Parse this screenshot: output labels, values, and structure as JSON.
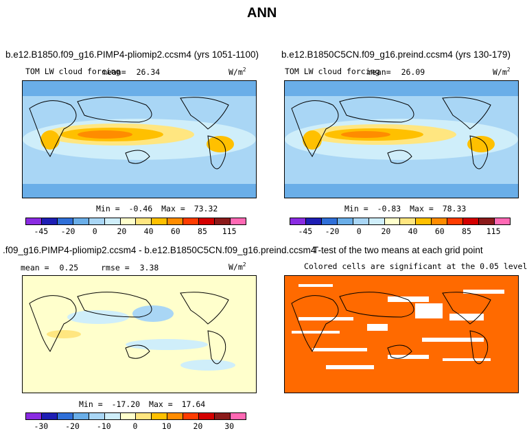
{
  "page_title": "ANN",
  "chart_data": [
    {
      "type": "heatmap",
      "title": "b.e12.B1850.f09_g16.PIMP4-pliomip2.ccsm4 (yrs 1051-1100)",
      "variable": "TOM LW cloud forcing",
      "mean_label": "mean=",
      "mean": "26.34",
      "units": "W/m",
      "units_exp": "2",
      "min_label": "Min =",
      "min": "-0.46",
      "max_label": "Max =",
      "max": "73.32",
      "colorbar_ticks": [
        "-45",
        "-20",
        "0",
        "20",
        "40",
        "60",
        "85",
        "115"
      ],
      "colorbar_colors": [
        "#8a2be2",
        "#1e1eb4",
        "#2f6fd8",
        "#6aaee8",
        "#a9d6f5",
        "#cfeefa",
        "#ffffcc",
        "#ffe680",
        "#ffc000",
        "#ff8c00",
        "#ff3c00",
        "#d40000",
        "#8b1a1a",
        "#ff69b4"
      ]
    },
    {
      "type": "heatmap",
      "title": "b.e12.B1850C5CN.f09_g16.preind.ccsm4 (yrs 130-179)",
      "variable": "TOM LW cloud forcing",
      "mean_label": "mean=",
      "mean": "26.09",
      "units": "W/m",
      "units_exp": "2",
      "min_label": "Min =",
      "min": "-0.83",
      "max_label": "Max =",
      "max": "78.33",
      "colorbar_ticks": [
        "-45",
        "-20",
        "0",
        "20",
        "40",
        "60",
        "85",
        "115"
      ],
      "colorbar_colors": [
        "#8a2be2",
        "#1e1eb4",
        "#2f6fd8",
        "#6aaee8",
        "#a9d6f5",
        "#cfeefa",
        "#ffffcc",
        "#ffe680",
        "#ffc000",
        "#ff8c00",
        "#ff3c00",
        "#d40000",
        "#8b1a1a",
        "#ff69b4"
      ]
    },
    {
      "type": "heatmap",
      "title": ".f09_g16.PIMP4-pliomip2.ccsm4 - b.e12.B1850C5CN.f09_g16.preind.ccsm4",
      "mean_label": "mean =",
      "mean": "0.25",
      "rmse_label": "rmse =",
      "rmse": "3.38",
      "units": "W/m",
      "units_exp": "2",
      "min_label": "Min =",
      "min": "-17.20",
      "max_label": "Max =",
      "max": "17.64",
      "colorbar_ticks": [
        "-30",
        "-20",
        "-10",
        "0",
        "10",
        "20",
        "30"
      ],
      "colorbar_colors": [
        "#8a2be2",
        "#1e1eb4",
        "#2f6fd8",
        "#6aaee8",
        "#a9d6f5",
        "#cfeefa",
        "#ffffcc",
        "#ffe680",
        "#ffc000",
        "#ff8c00",
        "#ff3c00",
        "#d40000",
        "#8b1a1a",
        "#ff69b4"
      ]
    },
    {
      "type": "heatmap",
      "title": "T-test of the two means at each grid point",
      "subtitle": "Colored cells are significant at the 0.05 level",
      "significant_color": "#ff6a00"
    }
  ]
}
